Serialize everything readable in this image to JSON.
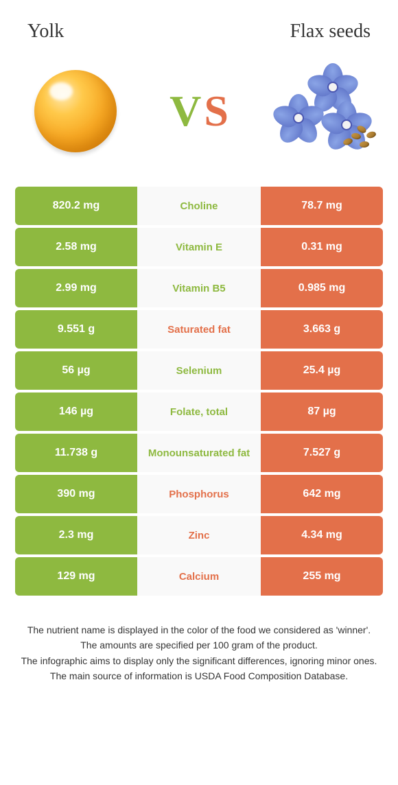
{
  "header": {
    "left_title": "Yolk",
    "right_title": "Flax seeds",
    "vs_v": "V",
    "vs_s": "S"
  },
  "colors": {
    "left_col": "#8eb940",
    "right_col": "#e3704a",
    "row_bg": "#f9f9f9",
    "flower_petal": "#8aa4e6",
    "flower_petal_dark": "#5f74c8"
  },
  "rows": [
    {
      "left": "820.2 mg",
      "label": "Choline",
      "right": "78.7 mg",
      "winner": "left"
    },
    {
      "left": "2.58 mg",
      "label": "Vitamin E",
      "right": "0.31 mg",
      "winner": "left"
    },
    {
      "left": "2.99 mg",
      "label": "Vitamin B5",
      "right": "0.985 mg",
      "winner": "left"
    },
    {
      "left": "9.551 g",
      "label": "Saturated fat",
      "right": "3.663 g",
      "winner": "right"
    },
    {
      "left": "56 µg",
      "label": "Selenium",
      "right": "25.4 µg",
      "winner": "left"
    },
    {
      "left": "146 µg",
      "label": "Folate, total",
      "right": "87 µg",
      "winner": "left"
    },
    {
      "left": "11.738 g",
      "label": "Monounsaturated fat",
      "right": "7.527 g",
      "winner": "left"
    },
    {
      "left": "390 mg",
      "label": "Phosphorus",
      "right": "642 mg",
      "winner": "right"
    },
    {
      "left": "2.3 mg",
      "label": "Zinc",
      "right": "4.34 mg",
      "winner": "right"
    },
    {
      "left": "129 mg",
      "label": "Calcium",
      "right": "255 mg",
      "winner": "right"
    }
  ],
  "footer": {
    "line1": "The nutrient name is displayed in the color of the food we considered as 'winner'.",
    "line2": "The amounts are specified per 100 gram of the product.",
    "line3": "The infographic aims to display only the significant differences, ignoring minor ones.",
    "line4": "The main source of information is USDA Food Composition Database."
  }
}
